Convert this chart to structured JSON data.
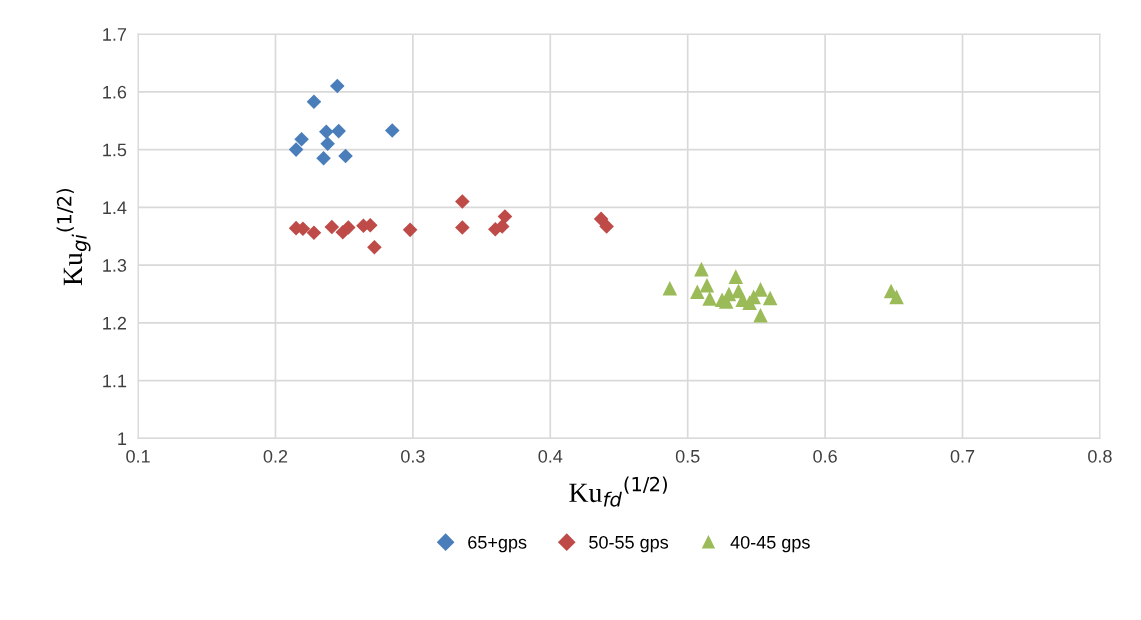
{
  "chart_data": {
    "type": "scatter",
    "xlabel": "Ku$_{fd}$$^{(1/2)}$",
    "ylabel": "Ku$_{gi}$$^{(1/2)}$",
    "xlim": [
      0.1,
      0.8
    ],
    "xticks": [
      0.1,
      0.2,
      0.3,
      0.4,
      0.5,
      0.6,
      0.7,
      0.8
    ],
    "ylim": [
      1,
      1.7
    ],
    "yticks": [
      1,
      1.1,
      1.2,
      1.3,
      1.4,
      1.5,
      1.6,
      1.7
    ],
    "grid": true,
    "legend": "bottom",
    "series": [
      {
        "name": "65+gps",
        "color": "#4a7ebb",
        "marker": "diamond",
        "x": [
          0.245,
          0.228,
          0.285,
          0.237,
          0.246,
          0.238,
          0.219,
          0.215,
          0.235,
          0.251
        ],
        "values": [
          1.61,
          1.583,
          1.533,
          1.531,
          1.532,
          1.51,
          1.518,
          1.5,
          1.485,
          1.489
        ]
      },
      {
        "name": "50-55 gps",
        "color": "#be4b48",
        "marker": "diamond",
        "x": [
          0.215,
          0.22,
          0.228,
          0.241,
          0.249,
          0.253,
          0.264,
          0.269,
          0.272,
          0.298,
          0.336,
          0.336,
          0.36,
          0.365,
          0.367,
          0.437,
          0.441
        ],
        "values": [
          1.364,
          1.363,
          1.356,
          1.366,
          1.357,
          1.365,
          1.368,
          1.369,
          1.331,
          1.361,
          1.41,
          1.365,
          1.362,
          1.367,
          1.384,
          1.38,
          1.367
        ]
      },
      {
        "name": "40-45 gps",
        "color": "#9bbb59",
        "marker": "triangle",
        "x": [
          0.487,
          0.51,
          0.507,
          0.514,
          0.516,
          0.525,
          0.528,
          0.53,
          0.535,
          0.537,
          0.54,
          0.545,
          0.548,
          0.553,
          0.553,
          0.557,
          0.56,
          0.648,
          0.652
        ],
        "values": [
          1.26,
          1.293,
          1.254,
          1.265,
          1.242,
          1.24,
          1.237,
          1.25,
          1.28,
          1.255,
          1.24,
          1.235,
          1.245,
          1.258,
          1.213,
          null,
          1.243,
          1.255,
          1.245
        ]
      }
    ]
  }
}
